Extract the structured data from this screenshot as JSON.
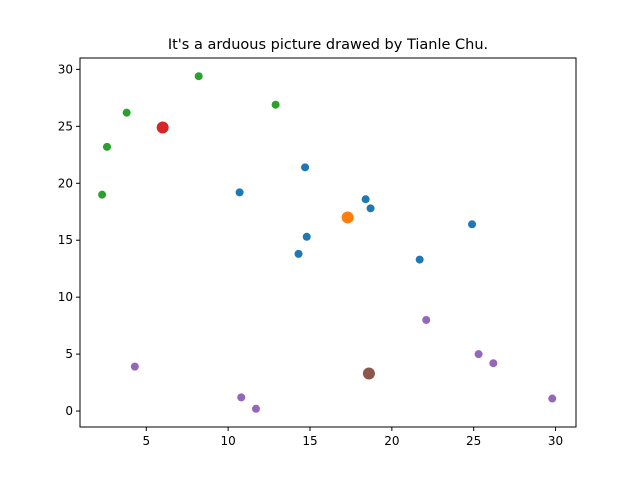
{
  "chart_data": {
    "type": "scatter",
    "title": "It's a arduous picture drawed by Tianle Chu.",
    "xlabel": "",
    "ylabel": "",
    "xlim": [
      0.95,
      31.25
    ],
    "ylim": [
      -1.4,
      31.0
    ],
    "xticks": [
      5,
      10,
      15,
      20,
      25,
      30
    ],
    "yticks": [
      0,
      5,
      10,
      15,
      20,
      25,
      30
    ],
    "grid": false,
    "series": [
      {
        "color": "#1f77b4",
        "marker_size": "small",
        "points": [
          {
            "x": 10.7,
            "y": 19.2
          },
          {
            "x": 14.7,
            "y": 21.4
          },
          {
            "x": 18.4,
            "y": 18.6
          },
          {
            "x": 18.7,
            "y": 17.8
          },
          {
            "x": 24.9,
            "y": 16.4
          },
          {
            "x": 14.8,
            "y": 15.3
          },
          {
            "x": 14.3,
            "y": 13.8
          },
          {
            "x": 21.7,
            "y": 13.3
          }
        ]
      },
      {
        "color": "#ff7f0e",
        "marker_size": "large",
        "points": [
          {
            "x": 17.3,
            "y": 17.0
          }
        ]
      },
      {
        "color": "#2ca02c",
        "marker_size": "small",
        "points": [
          {
            "x": 8.2,
            "y": 29.4
          },
          {
            "x": 12.9,
            "y": 26.9
          },
          {
            "x": 3.8,
            "y": 26.2
          },
          {
            "x": 2.6,
            "y": 23.2
          },
          {
            "x": 2.3,
            "y": 19.0
          }
        ]
      },
      {
        "color": "#d62728",
        "marker_size": "large",
        "points": [
          {
            "x": 6.0,
            "y": 24.9
          }
        ]
      },
      {
        "color": "#9467bd",
        "marker_size": "small",
        "points": [
          {
            "x": 22.1,
            "y": 8.0
          },
          {
            "x": 25.3,
            "y": 5.0
          },
          {
            "x": 26.2,
            "y": 4.2
          },
          {
            "x": 29.8,
            "y": 1.1
          },
          {
            "x": 4.3,
            "y": 3.9
          },
          {
            "x": 10.8,
            "y": 1.2
          },
          {
            "x": 11.7,
            "y": 0.2
          }
        ]
      },
      {
        "color": "#8c564b",
        "marker_size": "large",
        "points": [
          {
            "x": 18.6,
            "y": 3.3
          }
        ]
      }
    ]
  }
}
